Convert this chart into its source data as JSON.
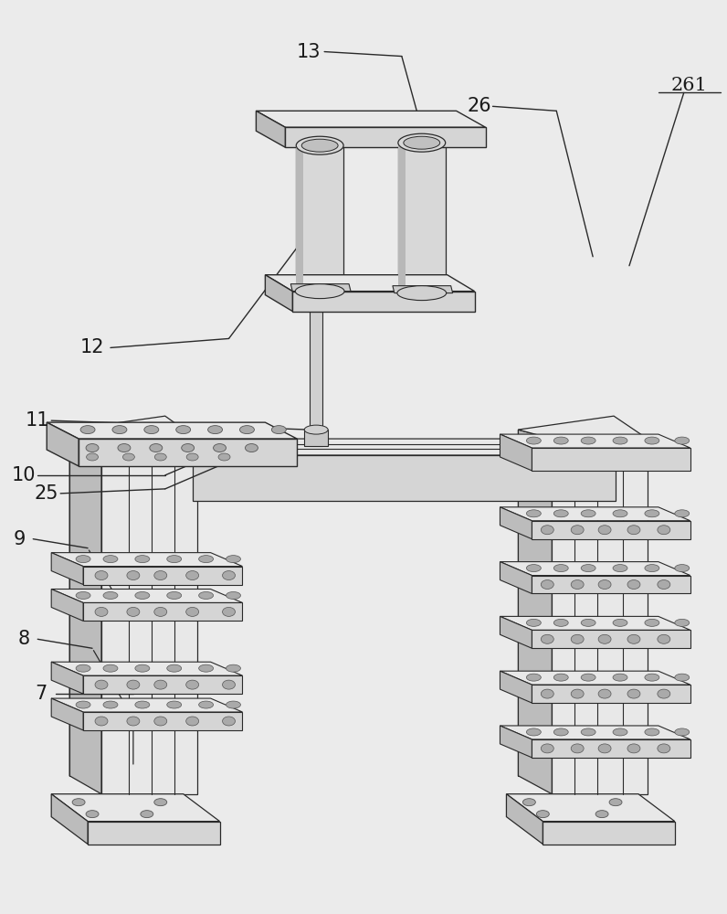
{
  "bg_color": "#ebebeb",
  "line_color": "#2a2a2a",
  "face_light": "#e8e8e8",
  "face_mid": "#d5d5d5",
  "face_dark": "#bcbcbc",
  "face_darker": "#a8a8a8",
  "face_side": "#c8c8c8",
  "hole_color": "#aaaaaa",
  "figsize": [
    7.96,
    10.0
  ],
  "dpi": 100
}
